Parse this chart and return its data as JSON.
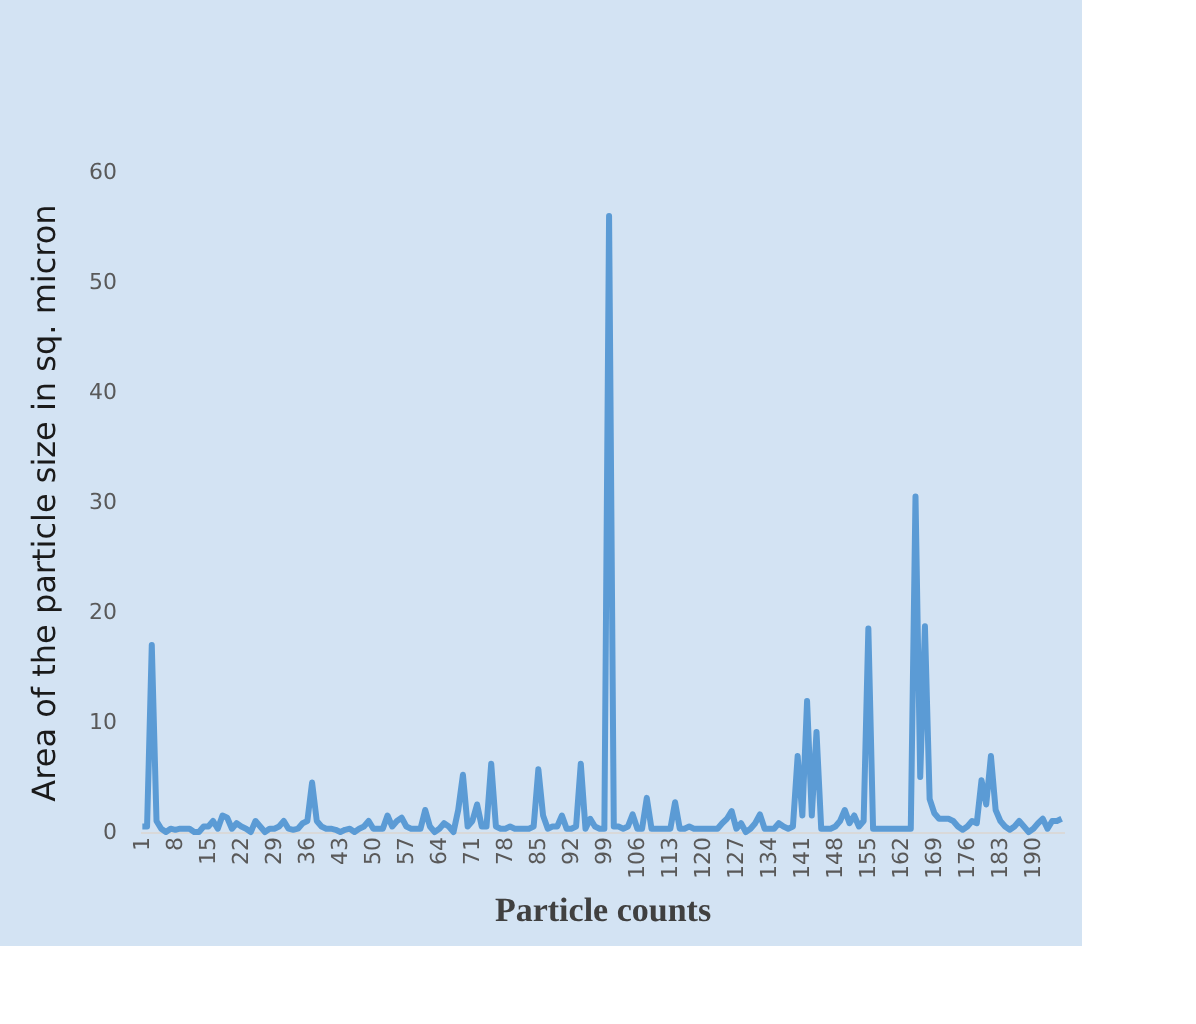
{
  "chart_data": {
    "type": "line",
    "xlabel": "Particle counts",
    "ylabel": "Area of the particle size in sq. micron",
    "categories": [
      "1",
      null,
      null,
      null,
      null,
      null,
      null,
      "8",
      null,
      null,
      null,
      null,
      null,
      null,
      "15",
      null,
      null,
      null,
      null,
      null,
      null,
      "22",
      null,
      null,
      null,
      null,
      null,
      null,
      "29",
      null,
      null,
      null,
      null,
      null,
      null,
      "36",
      null,
      null,
      null,
      null,
      null,
      null,
      "43",
      null,
      null,
      null,
      null,
      null,
      null,
      "50",
      null,
      null,
      null,
      null,
      null,
      null,
      "57",
      null,
      null,
      null,
      null,
      null,
      null,
      "64",
      null,
      null,
      null,
      null,
      null,
      null,
      "71",
      null,
      null,
      null,
      null,
      null,
      null,
      "78",
      null,
      null,
      null,
      null,
      null,
      null,
      "85",
      null,
      null,
      null,
      null,
      null,
      null,
      "92",
      null,
      null,
      null,
      null,
      null,
      null,
      "99",
      null,
      null,
      null,
      null,
      null,
      null,
      "106",
      null,
      null,
      null,
      null,
      null,
      null,
      "113",
      null,
      null,
      null,
      null,
      null,
      null,
      "120",
      null,
      null,
      null,
      null,
      null,
      null,
      "127",
      null,
      null,
      null,
      null,
      null,
      null,
      "134",
      null,
      null,
      null,
      null,
      null,
      null,
      "141",
      null,
      null,
      null,
      null,
      null,
      null,
      "148",
      null,
      null,
      null,
      null,
      null,
      null,
      "155",
      null,
      null,
      null,
      null,
      null,
      null,
      "162",
      null,
      null,
      null,
      null,
      null,
      null,
      "169",
      null,
      null,
      null,
      null,
      null,
      null,
      "176",
      null,
      null,
      null,
      null,
      null,
      null,
      "183",
      null,
      null,
      null,
      null,
      null,
      null,
      "190",
      null,
      null,
      null,
      null,
      null,
      null
    ],
    "series": [
      {
        "color": "#5b9bd5",
        "values": [
          0.5,
          0.5,
          17,
          1,
          0.3,
          0,
          0.3,
          0.2,
          0.3,
          0.3,
          0.3,
          0,
          0,
          0.5,
          0.5,
          1,
          0.3,
          1.5,
          1.3,
          0.3,
          0.8,
          0.5,
          0.3,
          0,
          1,
          0.5,
          0,
          0.3,
          0.3,
          0.5,
          1,
          0.3,
          0.2,
          0.3,
          0.8,
          1,
          4.5,
          1,
          0.5,
          0.3,
          0.3,
          0.2,
          0,
          0.2,
          0.3,
          0,
          0.3,
          0.5,
          1,
          0.3,
          0.3,
          0.3,
          1.5,
          0.5,
          1,
          1.3,
          0.5,
          0.3,
          0.3,
          0.3,
          2,
          0.5,
          0,
          0.3,
          0.8,
          0.5,
          0,
          2,
          5.2,
          0.5,
          1,
          2.5,
          0.5,
          0.5,
          6.2,
          0.5,
          0.3,
          0.3,
          0.5,
          0.3,
          0.3,
          0.3,
          0.3,
          0.5,
          5.7,
          1.5,
          0.3,
          0.5,
          0.5,
          1.5,
          0.3,
          0.3,
          0.5,
          6.2,
          0.3,
          1.2,
          0.5,
          0.3,
          0.3,
          56,
          0.5,
          0.5,
          0.3,
          0.5,
          1.6,
          0.3,
          0.3,
          3.1,
          0.3,
          0.3,
          0.3,
          0.3,
          0.3,
          2.7,
          0.3,
          0.3,
          0.5,
          0.3,
          0.3,
          0.3,
          0.3,
          0.3,
          0.3,
          0.8,
          1.2,
          1.9,
          0.3,
          0.8,
          0,
          0.3,
          0.8,
          1.6,
          0.3,
          0.3,
          0.3,
          0.8,
          0.5,
          0.3,
          0.5,
          6.9,
          1.5,
          11.9,
          1.5,
          9.1,
          0.3,
          0.3,
          0.3,
          0.5,
          1,
          2,
          0.8,
          1.5,
          0.5,
          1,
          18.5,
          0.3,
          0.3,
          0.3,
          0.3,
          0.3,
          0.3,
          0.3,
          0.3,
          0.3,
          30.5,
          5,
          18.7,
          3,
          1.7,
          1.2,
          1.2,
          1.2,
          1,
          0.5,
          0.2,
          0.5,
          1,
          0.8,
          4.7,
          2.5,
          6.9,
          2,
          1,
          0.5,
          0.2,
          0.5,
          1,
          0.5,
          0,
          0.3,
          0.8,
          1.2,
          0.3,
          1,
          1,
          1.2
        ]
      }
    ],
    "ylim": [
      0,
      60
    ],
    "yticks": [
      0,
      10,
      20,
      30,
      40,
      50,
      60
    ],
    "grid": false,
    "marker": "none",
    "line_style": "solid"
  }
}
